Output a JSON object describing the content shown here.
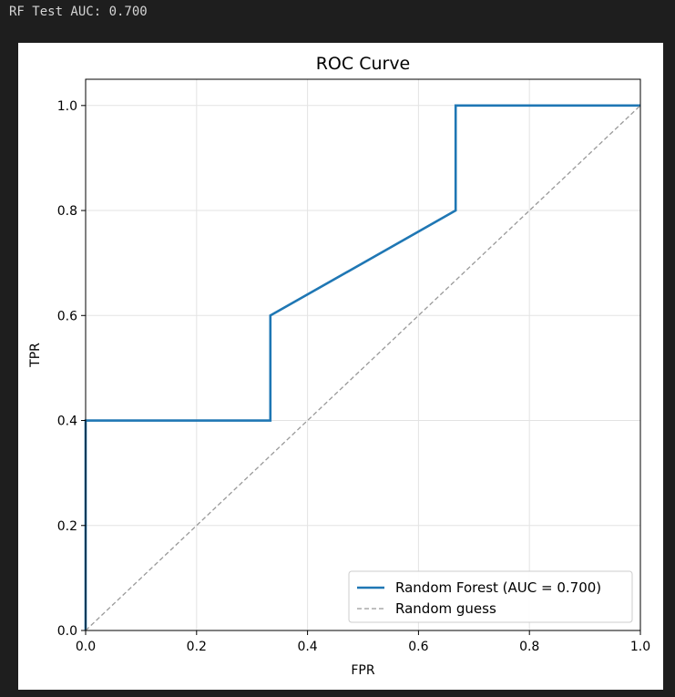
{
  "output": {
    "text": "RF Test AUC: 0.700"
  },
  "chart_data": {
    "type": "line",
    "title": "ROC Curve",
    "xlabel": "FPR",
    "ylabel": "TPR",
    "xlim": [
      0.0,
      1.0
    ],
    "ylim": [
      0.0,
      1.05
    ],
    "xticks": [
      "0.0",
      "0.2",
      "0.4",
      "0.6",
      "0.8",
      "1.0"
    ],
    "yticks": [
      "0.0",
      "0.2",
      "0.4",
      "0.6",
      "0.8",
      "1.0"
    ],
    "grid": true,
    "legend_position": "lower-right",
    "series": [
      {
        "name": "Random Forest (AUC = 0.700)",
        "color": "#1f77b4",
        "style": "solid",
        "x": [
          0.0,
          0.0,
          0.333,
          0.333,
          0.667,
          0.667,
          1.0
        ],
        "y": [
          0.0,
          0.4,
          0.4,
          0.6,
          0.8,
          1.0,
          1.0
        ]
      },
      {
        "name": "Random guess",
        "color": "#999999",
        "style": "dashed",
        "x": [
          0.0,
          1.0
        ],
        "y": [
          0.0,
          1.0
        ]
      }
    ]
  }
}
